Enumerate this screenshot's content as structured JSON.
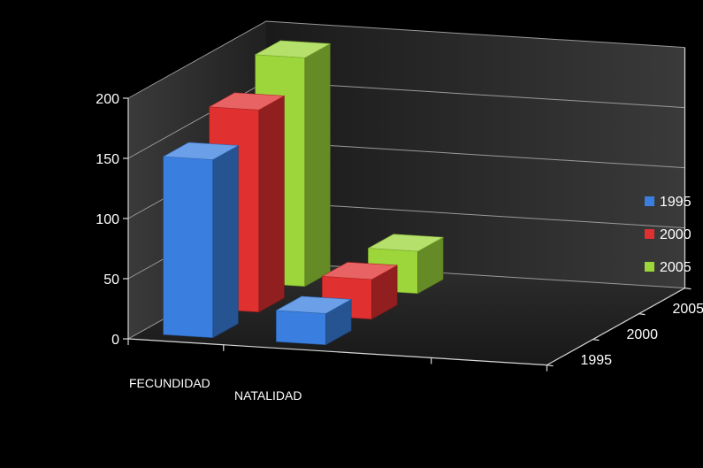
{
  "chart_data": {
    "type": "bar",
    "subtype": "3d-clustered-column",
    "title": "",
    "xlabel": "",
    "ylabel": "",
    "categories": [
      "FECUNDIDAD",
      "NATALIDAD"
    ],
    "depth_categories": [
      "1995",
      "2000",
      "2005"
    ],
    "series": [
      {
        "name": "1995",
        "color": "#3a7fe0",
        "values": [
          148,
          26
        ]
      },
      {
        "name": "2000",
        "color": "#e03030",
        "values": [
          168,
          33
        ]
      },
      {
        "name": "2005",
        "color": "#9cd63a",
        "values": [
          190,
          35
        ]
      }
    ],
    "ylim": [
      0,
      200
    ],
    "yticks": [
      "0",
      "50",
      "100",
      "150",
      "200"
    ],
    "grid": true,
    "legend_position": "right"
  }
}
